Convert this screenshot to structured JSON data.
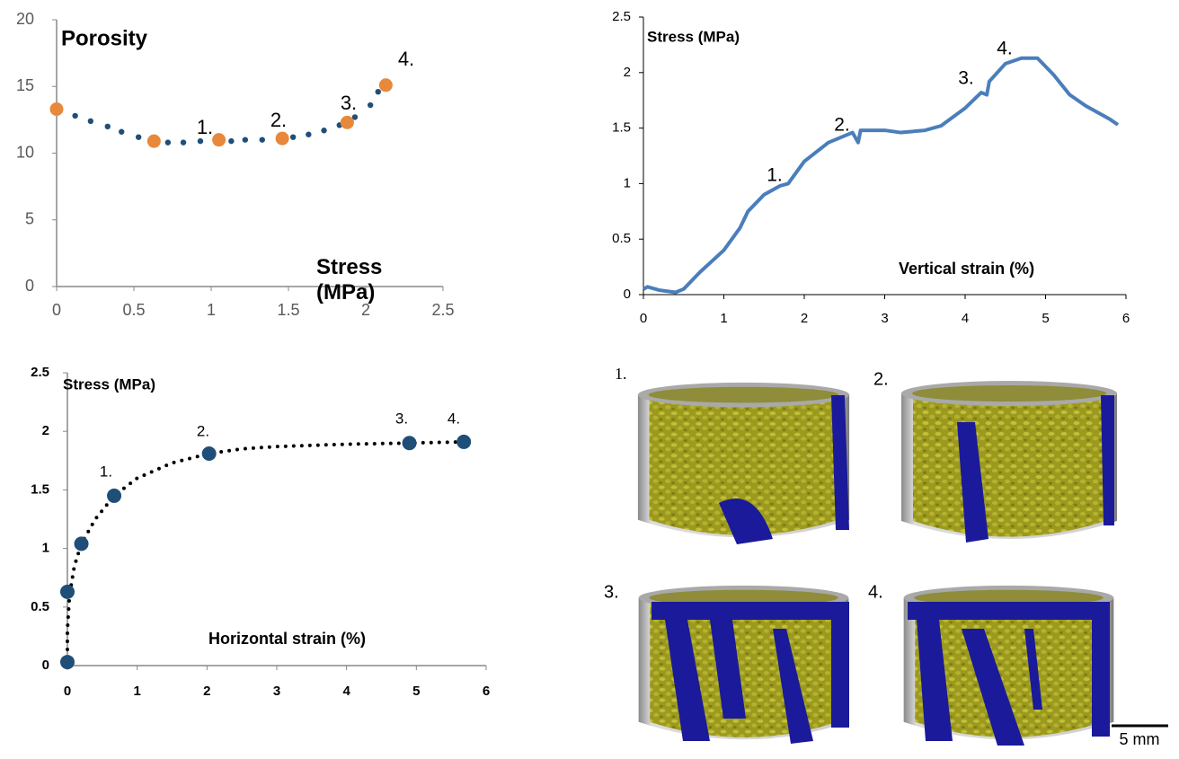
{
  "chart_data": [
    {
      "type": "scatter",
      "y_label": "Porosity",
      "x_label": "Stress (MPa)",
      "xlim": [
        0,
        2.5
      ],
      "xticks": [
        0,
        0.5,
        1,
        1.5,
        2,
        2.5
      ],
      "ylim": [
        0,
        20
      ],
      "yticks": [
        0,
        5,
        10,
        15,
        20
      ],
      "series": [
        {
          "color": "#1f4e79",
          "x": [
            0.12,
            0.22,
            0.33,
            0.42,
            0.53,
            0.72,
            0.82,
            0.93,
            1.13,
            1.22,
            1.33,
            1.53,
            1.63,
            1.73,
            1.83,
            1.93,
            2.03,
            2.08
          ],
          "values": [
            12.8,
            12.4,
            12.0,
            11.6,
            11.2,
            10.8,
            10.8,
            10.9,
            10.9,
            11.0,
            11.0,
            11.2,
            11.4,
            11.7,
            12.1,
            12.7,
            13.6,
            14.6
          ]
        },
        {
          "color": "#e8883a",
          "x": [
            0,
            0.63,
            1.05,
            1.46,
            1.88,
            2.13
          ],
          "values": [
            13.3,
            10.9,
            11.0,
            11.1,
            12.3,
            15.1
          ]
        }
      ],
      "annotations": [
        "1.",
        "2.",
        "3.",
        "4."
      ]
    },
    {
      "type": "line",
      "y_label": "Stress (MPa)",
      "x_label": "Vertical strain (%)",
      "color": "#4a7ebb",
      "xlim": [
        0,
        6
      ],
      "xticks": [
        0,
        1,
        2,
        3,
        4,
        5,
        6
      ],
      "ylim": [
        0,
        2.5
      ],
      "yticks": [
        0,
        0.5,
        1,
        1.5,
        2,
        2.5
      ],
      "x": [
        0,
        0.05,
        0.2,
        0.4,
        0.5,
        0.7,
        1.0,
        1.2,
        1.3,
        1.5,
        1.7,
        1.8,
        1.85,
        2.0,
        2.3,
        2.6,
        2.67,
        2.7,
        3.0,
        3.2,
        3.5,
        3.7,
        4.0,
        4.2,
        4.27,
        4.3,
        4.5,
        4.7,
        4.9,
        5.1,
        5.3,
        5.5,
        5.8,
        5.9
      ],
      "values": [
        0.05,
        0.07,
        0.04,
        0.02,
        0.05,
        0.2,
        0.4,
        0.6,
        0.75,
        0.9,
        0.98,
        1.0,
        1.05,
        1.2,
        1.37,
        1.46,
        1.37,
        1.48,
        1.48,
        1.46,
        1.48,
        1.52,
        1.68,
        1.82,
        1.8,
        1.92,
        2.08,
        2.13,
        2.13,
        1.98,
        1.8,
        1.7,
        1.58,
        1.53
      ],
      "annotations": [
        "1.",
        "2.",
        "3.",
        "4."
      ]
    },
    {
      "type": "scatter",
      "y_label": "Stress (MPa)",
      "x_label": "Horizontal strain (%)",
      "xlim": [
        0,
        6
      ],
      "xticks": [
        0,
        1,
        2,
        3,
        4,
        5,
        6
      ],
      "ylim": [
        0,
        2.5
      ],
      "yticks": [
        0,
        0.5,
        1,
        1.5,
        2,
        2.5
      ],
      "series": [
        {
          "color": "#000000",
          "line_style": "dotted",
          "x": [
            0,
            0,
            0.03,
            0.1,
            0.2,
            0.4,
            0.67,
            1.0,
            1.5,
            2.03,
            2.5,
            3,
            4,
            4.9,
            5.68
          ],
          "values": [
            0,
            0.3,
            0.6,
            0.85,
            1.04,
            1.25,
            1.45,
            1.6,
            1.73,
            1.81,
            1.85,
            1.87,
            1.89,
            1.9,
            1.91
          ]
        },
        {
          "color": "#1f4e79",
          "x": [
            0,
            0,
            0.2,
            0.67,
            2.03,
            4.9,
            5.68
          ],
          "values": [
            0.03,
            0.63,
            1.04,
            1.45,
            1.81,
            1.9,
            1.91
          ]
        }
      ],
      "annotations": [
        "1.",
        "2.",
        "3.",
        "4."
      ]
    }
  ],
  "panel": {
    "labels": [
      "1.",
      "2.",
      "3.",
      "4."
    ],
    "scale_bar": "5 mm"
  }
}
